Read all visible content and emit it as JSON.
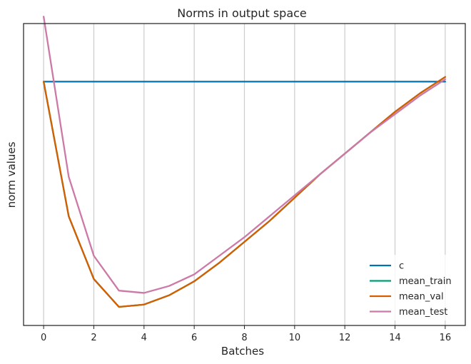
{
  "chart_data": {
    "type": "line",
    "title": "Norms in output space",
    "xlabel": "Batches",
    "ylabel": "norm values",
    "x": [
      0,
      1,
      2,
      3,
      4,
      5,
      6,
      7,
      8,
      9,
      10,
      11,
      12,
      13,
      14,
      15,
      16
    ],
    "xticks": [
      0,
      2,
      4,
      6,
      8,
      10,
      12,
      14,
      16
    ],
    "xlim": [
      -0.8,
      16.8
    ],
    "ylim": [
      -0.05,
      1.25
    ],
    "y_tick_labels_shown": false,
    "grid": "vertical",
    "legend_position": "lower right",
    "series": [
      {
        "name": "c",
        "color": "#0072B2",
        "values": [
          1.0,
          1.0,
          1.0,
          1.0,
          1.0,
          1.0,
          1.0,
          1.0,
          1.0,
          1.0,
          1.0,
          1.0,
          1.0,
          1.0,
          1.0,
          1.0,
          1.0
        ]
      },
      {
        "name": "mean_train",
        "color": "#009E73",
        "values": [
          1.0,
          0.42,
          0.15,
          0.03,
          0.04,
          0.08,
          0.14,
          0.22,
          0.31,
          0.4,
          0.5,
          0.6,
          0.69,
          0.78,
          0.87,
          0.95,
          1.02
        ]
      },
      {
        "name": "mean_val",
        "color": "#D55E00",
        "values": [
          1.0,
          0.42,
          0.15,
          0.03,
          0.04,
          0.08,
          0.14,
          0.22,
          0.31,
          0.4,
          0.5,
          0.6,
          0.69,
          0.78,
          0.87,
          0.95,
          1.02
        ]
      },
      {
        "name": "mean_test",
        "color": "#CC79A7",
        "values": [
          1.28,
          0.59,
          0.25,
          0.1,
          0.09,
          0.12,
          0.17,
          0.25,
          0.33,
          0.42,
          0.51,
          0.6,
          0.69,
          0.78,
          0.86,
          0.94,
          1.01
        ]
      }
    ]
  }
}
